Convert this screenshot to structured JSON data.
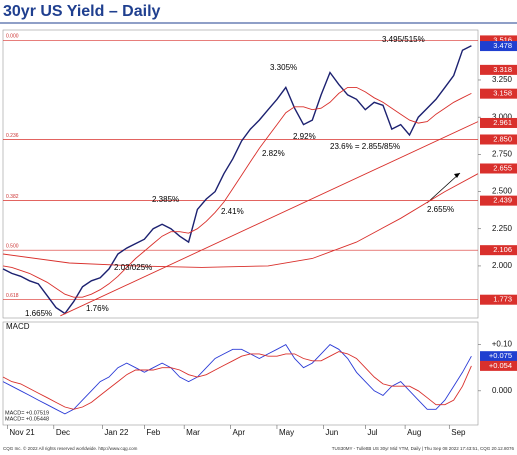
{
  "title": "30yr US Yield – Daily",
  "chart_data": [
    {
      "type": "line",
      "xlim": [
        0,
        215
      ],
      "xticks": [
        {
          "value": 2,
          "label": "Nov 21"
        },
        {
          "value": 23,
          "label": "Dec"
        },
        {
          "value": 45,
          "label": "Jan 22"
        },
        {
          "value": 64,
          "label": "Feb"
        },
        {
          "value": 82,
          "label": "Mar"
        },
        {
          "value": 103,
          "label": "Apr"
        },
        {
          "value": 124,
          "label": "May"
        },
        {
          "value": 145,
          "label": "Jun"
        },
        {
          "value": 164,
          "label": "Jul"
        },
        {
          "value": 182,
          "label": "Aug"
        },
        {
          "value": 202,
          "label": "Sep"
        }
      ],
      "ylim": [
        1.65,
        3.586
      ],
      "yticks": [
        {
          "value": 3.25,
          "label": "3.250"
        },
        {
          "value": 3,
          "label": "3.000"
        },
        {
          "value": 2.75,
          "label": "2.750"
        },
        {
          "value": 2.5,
          "label": "2.500"
        },
        {
          "value": 2.25,
          "label": "2.250"
        },
        {
          "value": 2,
          "label": "2.000"
        }
      ],
      "series": [
        {
          "color": "#1c2170",
          "x": [
            0,
            4,
            8,
            12,
            16,
            20,
            24,
            28,
            32,
            36,
            40,
            44,
            48,
            52,
            56,
            60,
            64,
            68,
            72,
            76,
            80,
            84,
            88,
            92,
            96,
            100,
            104,
            108,
            112,
            116,
            120,
            124,
            128,
            132,
            136,
            140,
            144,
            148,
            152,
            156,
            160,
            164,
            168,
            172,
            176,
            180,
            184,
            188,
            192,
            196,
            200,
            204,
            208,
            212
          ],
          "values": [
            1.98,
            1.95,
            1.93,
            1.9,
            1.88,
            1.8,
            1.72,
            1.68,
            1.76,
            1.86,
            1.9,
            1.92,
            1.98,
            2.08,
            2.12,
            2.15,
            2.18,
            2.25,
            2.28,
            2.25,
            2.2,
            2.16,
            2.38,
            2.45,
            2.5,
            2.62,
            2.72,
            2.84,
            2.92,
            2.98,
            3.05,
            3.12,
            3.2,
            3.06,
            2.95,
            2.98,
            3.15,
            3.3,
            3.22,
            3.15,
            3.12,
            3.05,
            3.1,
            3.08,
            2.92,
            2.95,
            2.88,
            3,
            3.06,
            3.12,
            3.2,
            3.28,
            3.45,
            3.48
          ]
        },
        {
          "color": "#d9302c",
          "x": [
            0,
            4,
            8,
            12,
            16,
            20,
            24,
            28,
            32,
            36,
            40,
            44,
            48,
            52,
            56,
            60,
            64,
            68,
            72,
            76,
            80,
            84,
            88,
            92,
            96,
            100,
            104,
            108,
            112,
            116,
            120,
            124,
            128,
            132,
            136,
            140,
            144,
            148,
            152,
            156,
            160,
            164,
            168,
            172,
            176,
            180,
            184,
            188,
            192,
            196,
            200,
            204,
            208,
            212
          ],
          "values": [
            2,
            1.99,
            1.97,
            1.95,
            1.92,
            1.89,
            1.85,
            1.81,
            1.79,
            1.79,
            1.81,
            1.84,
            1.88,
            1.93,
            1.99,
            2.05,
            2.1,
            2.15,
            2.2,
            2.23,
            2.23,
            2.22,
            2.25,
            2.3,
            2.36,
            2.43,
            2.52,
            2.61,
            2.7,
            2.79,
            2.87,
            2.95,
            3.03,
            3.07,
            3.07,
            3.05,
            3.06,
            3.1,
            3.16,
            3.2,
            3.2,
            3.17,
            3.13,
            3.1,
            3.06,
            3.02,
            2.98,
            2.96,
            2.97,
            3.02,
            3.06,
            3.1,
            3.13,
            3.16
          ]
        },
        {
          "color": "#d9302c",
          "x": [
            0,
            30,
            60,
            90,
            120,
            140,
            160,
            180,
            200,
            215
          ],
          "values": [
            2.08,
            2.02,
            2,
            1.99,
            2,
            2.05,
            2.16,
            2.32,
            2.5,
            2.62
          ]
        },
        {
          "color": "#d9302c",
          "x": [
            26,
            215
          ],
          "values": [
            1.665,
            2.97
          ]
        }
      ],
      "levels": [
        {
          "value": 3.516,
          "label": "3.516",
          "fib": "0.000"
        },
        {
          "value": 2.85,
          "label": "2.850",
          "fib": "0.236"
        },
        {
          "value": 2.439,
          "label": "2.439",
          "fib": "0.382"
        },
        {
          "value": 2.106,
          "label": "2.106",
          "fib": "0.500"
        },
        {
          "value": 1.773,
          "label": "1.773",
          "fib": "0.618"
        }
      ],
      "markers": [
        {
          "value": 3.478,
          "label": "3.478",
          "color": "#1f3fd0"
        },
        {
          "value": 3.318,
          "label": "3.318",
          "color": "#d9302c"
        },
        {
          "value": 3.158,
          "label": "3.158",
          "color": "#d9302c"
        },
        {
          "value": 2.961,
          "label": "2.961",
          "color": "#d9302c"
        },
        {
          "value": 2.655,
          "label": "2.655",
          "color": "#d9302c"
        }
      ],
      "annotations": [
        "3.495/515%",
        "3.305%",
        "2.92%",
        "2.82%",
        "23.6% = 2.855/85%",
        "2.385%",
        "2.41%",
        "2.03/025%",
        "1.76%",
        "1.665%",
        "2.655%"
      ]
    },
    {
      "type": "line",
      "title": "MACD",
      "xlim": [
        0,
        215
      ],
      "ylim": [
        -0.074,
        0.149
      ],
      "yticks": [
        {
          "value": 0.1,
          "label": "+0.10"
        },
        {
          "value": 0,
          "label": "0.000"
        }
      ],
      "series": [
        {
          "color": "#2b3bd6",
          "x": [
            0,
            4,
            8,
            12,
            16,
            20,
            24,
            28,
            32,
            36,
            40,
            44,
            48,
            52,
            56,
            60,
            64,
            68,
            72,
            76,
            80,
            84,
            88,
            92,
            96,
            100,
            104,
            108,
            112,
            116,
            120,
            124,
            128,
            132,
            136,
            140,
            144,
            148,
            152,
            156,
            160,
            164,
            168,
            172,
            176,
            180,
            184,
            188,
            192,
            196,
            200,
            204,
            208,
            212
          ],
          "values": [
            0.02,
            0.01,
            0,
            -0.01,
            -0.02,
            -0.03,
            -0.04,
            -0.05,
            -0.04,
            -0.02,
            0,
            0.02,
            0.03,
            0.05,
            0.06,
            0.05,
            0.04,
            0.05,
            0.06,
            0.05,
            0.03,
            0.02,
            0.03,
            0.05,
            0.07,
            0.08,
            0.09,
            0.09,
            0.08,
            0.07,
            0.08,
            0.09,
            0.1,
            0.07,
            0.05,
            0.06,
            0.08,
            0.1,
            0.09,
            0.07,
            0.04,
            0.02,
            0,
            -0.01,
            0.01,
            0.02,
            0,
            -0.02,
            -0.04,
            -0.04,
            -0.02,
            0.01,
            0.04,
            0.075
          ]
        },
        {
          "color": "#d9302c",
          "x": [
            0,
            4,
            8,
            12,
            16,
            20,
            24,
            28,
            32,
            36,
            40,
            44,
            48,
            52,
            56,
            60,
            64,
            68,
            72,
            76,
            80,
            84,
            88,
            92,
            96,
            100,
            104,
            108,
            112,
            116,
            120,
            124,
            128,
            132,
            136,
            140,
            144,
            148,
            152,
            156,
            160,
            164,
            168,
            172,
            176,
            180,
            184,
            188,
            192,
            196,
            200,
            204,
            208,
            212
          ],
          "values": [
            0.03,
            0.02,
            0.015,
            0.005,
            -0.005,
            -0.015,
            -0.025,
            -0.035,
            -0.04,
            -0.035,
            -0.025,
            -0.01,
            0.005,
            0.02,
            0.035,
            0.045,
            0.045,
            0.045,
            0.05,
            0.05,
            0.045,
            0.035,
            0.03,
            0.035,
            0.045,
            0.055,
            0.065,
            0.075,
            0.08,
            0.08,
            0.075,
            0.075,
            0.08,
            0.08,
            0.07,
            0.065,
            0.065,
            0.075,
            0.085,
            0.08,
            0.07,
            0.05,
            0.03,
            0.015,
            0.01,
            0.01,
            0.01,
            0,
            -0.015,
            -0.03,
            -0.03,
            -0.02,
            0.01,
            0.054
          ]
        }
      ],
      "markers": [
        {
          "value": 0.075,
          "label": "+0.075",
          "color": "#1f3fd0"
        },
        {
          "value": 0.054,
          "label": "+0.054",
          "color": "#d9302c"
        }
      ],
      "legend_texts": [
        "MACD= +0.07519",
        "MACD= +0.05448"
      ]
    }
  ],
  "footer": {
    "left": "CQG Inc. © 2022 All rights reserved worldwide. http://www.cqg.com",
    "right": "TUS30MY - TullettB US 30yr Mid YTM, Daily | Thu Sep 08 2022 17:43:51, CQG 20.12.8076"
  }
}
